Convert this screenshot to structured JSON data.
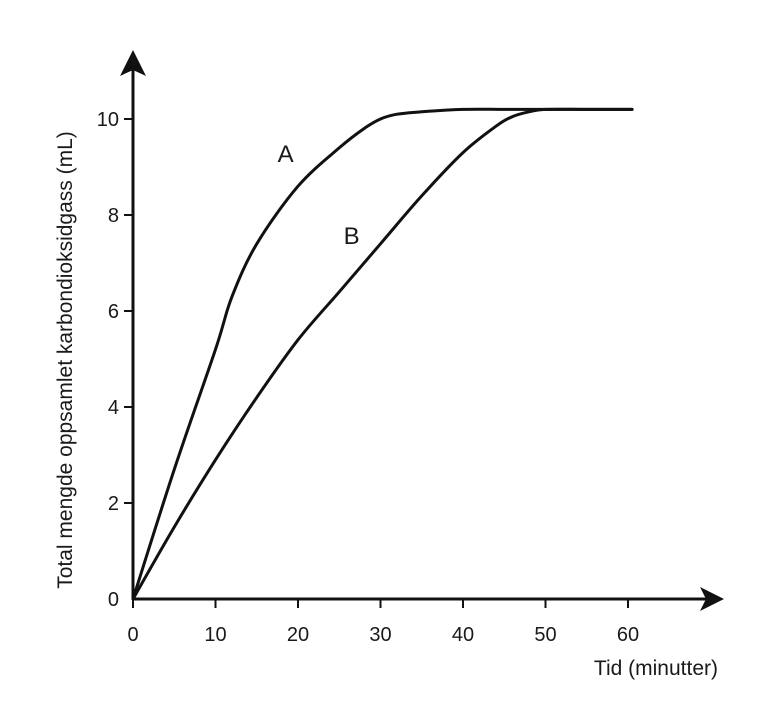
{
  "chart_data": {
    "type": "line",
    "xlabel": "Tid (minutter)",
    "ylabel": "Total mengde oppsamlet karbondioksidgass (mL)",
    "xlim": [
      0,
      70
    ],
    "ylim": [
      0,
      11
    ],
    "xticks": [
      0,
      10,
      20,
      30,
      40,
      50,
      60
    ],
    "yticks": [
      0,
      2,
      4,
      6,
      8,
      10
    ],
    "grid": false,
    "series": [
      {
        "name": "A",
        "label_at": [
          18.5,
          9.1
        ],
        "x": [
          0,
          5,
          10,
          12,
          15,
          20,
          25,
          28,
          30,
          32,
          35,
          40,
          45,
          50,
          55,
          60.5
        ],
        "y": [
          0,
          2.7,
          5.2,
          6.3,
          7.4,
          8.6,
          9.4,
          9.8,
          10.0,
          10.1,
          10.15,
          10.2,
          10.2,
          10.2,
          10.2,
          10.2
        ]
      },
      {
        "name": "B",
        "label_at": [
          26.5,
          7.4
        ],
        "x": [
          0,
          5,
          10,
          15,
          20,
          25,
          30,
          35,
          40,
          44,
          46,
          48,
          50,
          55,
          60.5
        ],
        "y": [
          0,
          1.5,
          2.9,
          4.2,
          5.4,
          6.4,
          7.4,
          8.4,
          9.3,
          9.85,
          10.05,
          10.15,
          10.2,
          10.2,
          10.2
        ]
      }
    ]
  }
}
